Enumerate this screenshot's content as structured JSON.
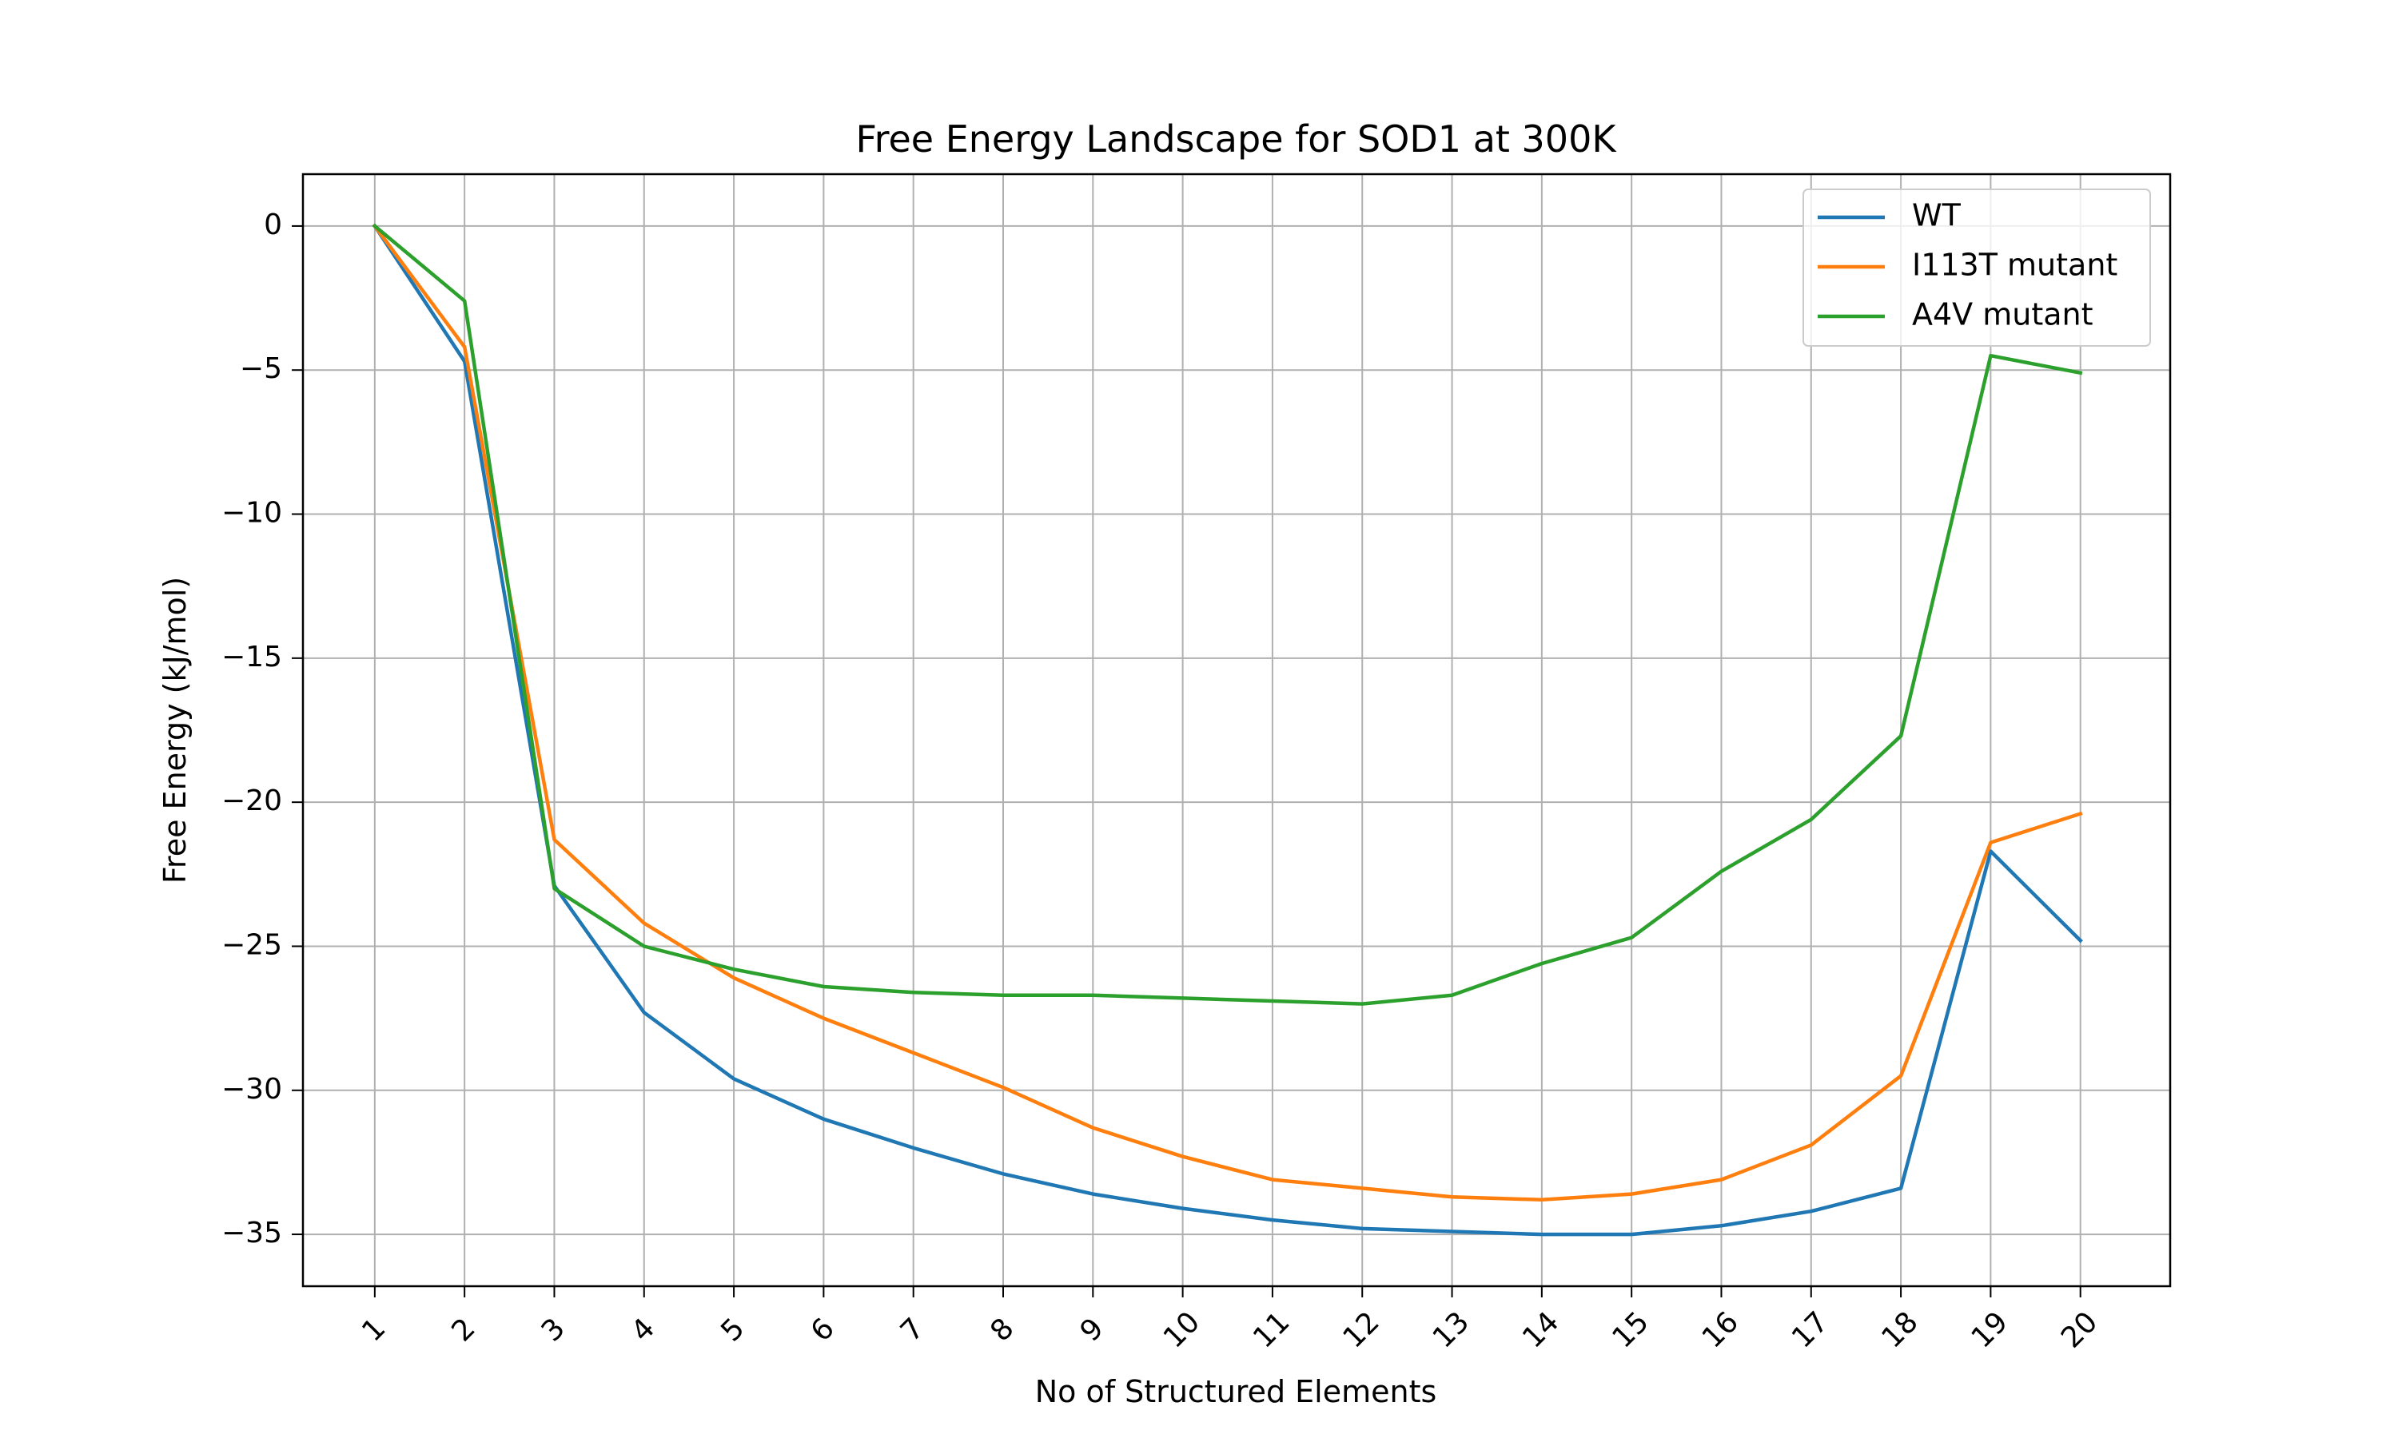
{
  "chart_data": {
    "type": "line",
    "title": "Free Energy Landscape for SOD1 at 300K",
    "xlabel": "No of Structured Elements",
    "ylabel": "Free Energy (kJ/mol)",
    "x": [
      1,
      2,
      3,
      4,
      5,
      6,
      7,
      8,
      9,
      10,
      11,
      12,
      13,
      14,
      15,
      16,
      17,
      18,
      19,
      20
    ],
    "xticks": [
      "1",
      "2",
      "3",
      "4",
      "5",
      "6",
      "7",
      "8",
      "9",
      "10",
      "11",
      "12",
      "13",
      "14",
      "15",
      "16",
      "17",
      "18",
      "19",
      "20"
    ],
    "yticks": [
      0,
      -5,
      -10,
      -15,
      -20,
      -25,
      -30,
      -35
    ],
    "ytick_labels": [
      "0",
      "−5",
      "−10",
      "−15",
      "−20",
      "−25",
      "−30",
      "−35"
    ],
    "xlim": [
      0.2,
      21.0
    ],
    "ylim": [
      -36.8,
      1.8
    ],
    "grid": true,
    "legend_position": "top-right",
    "series": [
      {
        "name": "WT",
        "color": "#1f77b4",
        "values": [
          0,
          -4.7,
          -22.9,
          -27.3,
          -29.6,
          -31.0,
          -32.0,
          -32.9,
          -33.6,
          -34.1,
          -34.5,
          -34.8,
          -34.9,
          -35.0,
          -35.0,
          -34.7,
          -34.2,
          -33.4,
          -21.7,
          -24.8
        ]
      },
      {
        "name": "I113T mutant",
        "color": "#ff7f0e",
        "values": [
          0,
          -4.2,
          -21.3,
          -24.2,
          -26.1,
          -27.5,
          -28.7,
          -29.9,
          -31.3,
          -32.3,
          -33.1,
          -33.4,
          -33.7,
          -33.8,
          -33.6,
          -33.1,
          -31.9,
          -29.5,
          -21.4,
          -20.4
        ]
      },
      {
        "name": "A4V mutant",
        "color": "#2ca02c",
        "values": [
          0,
          -2.6,
          -23.0,
          -25.0,
          -25.8,
          -26.4,
          -26.6,
          -26.7,
          -26.7,
          -26.8,
          -26.9,
          -27.0,
          -26.7,
          -25.6,
          -24.7,
          -22.4,
          -20.6,
          -17.7,
          -4.5,
          -5.1
        ]
      }
    ]
  }
}
